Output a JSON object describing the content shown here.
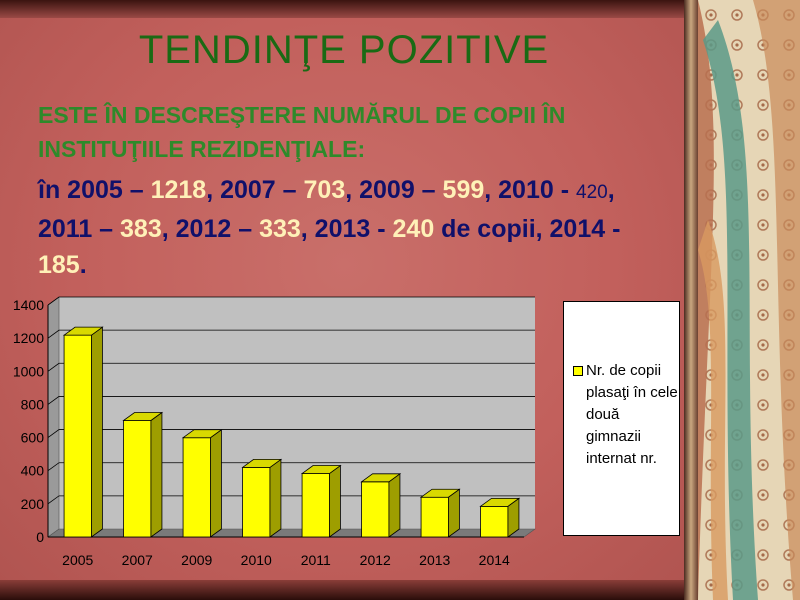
{
  "slide": {
    "title": "TENDINŢE POZITIVE",
    "subtitle": "ESTE ÎN DESCREŞTERE NUMĂRUL DE COPII ÎN INSTITUŢIILE REZIDENŢIALE:",
    "stats": [
      {
        "text": "în 2005 – ",
        "style": "normal"
      },
      {
        "text": "1218",
        "style": "hl"
      },
      {
        "text": ", 2007 – ",
        "style": "normal"
      },
      {
        "text": "703",
        "style": "hl"
      },
      {
        "text": ", 2009 – ",
        "style": "normal"
      },
      {
        "text": "599",
        "style": "hl"
      },
      {
        "text": ", 2010 - ",
        "style": "normal"
      },
      {
        "text": "420",
        "style": "sm"
      },
      {
        "text": ", 2011 – ",
        "style": "normal"
      },
      {
        "text": "383",
        "style": "hl"
      },
      {
        "text": ", 2012 – ",
        "style": "normal"
      },
      {
        "text": "333",
        "style": "hl"
      },
      {
        "text": ", 2013 - ",
        "style": "normal"
      },
      {
        "text": "240",
        "style": "hl"
      },
      {
        "text": " de copii, 2014 - ",
        "style": "normal"
      },
      {
        "text": "185",
        "style": "hl"
      },
      {
        "text": ".",
        "style": "normal"
      }
    ]
  },
  "chart_data": {
    "type": "bar",
    "categories": [
      "2005",
      "2007",
      "2009",
      "2010",
      "2011",
      "2012",
      "2013",
      "2014"
    ],
    "series": [
      {
        "name": "Nr. de copii plasaţi în cele două gimnazii internat nr.",
        "values": [
          1218,
          703,
          599,
          420,
          383,
          333,
          240,
          185
        ],
        "color": "#ffff00"
      }
    ],
    "ylim": [
      0,
      1400
    ],
    "yticks": [
      0,
      200,
      400,
      600,
      800,
      1000,
      1200,
      1400
    ],
    "grid": true,
    "legend": "right"
  },
  "colors": {
    "panel": "#c2605c",
    "title": "#1a6a14",
    "subtitle": "#2e8a2a",
    "stats": "#10106a",
    "highlight": "#fff1b8",
    "bar": "#ffff00"
  }
}
